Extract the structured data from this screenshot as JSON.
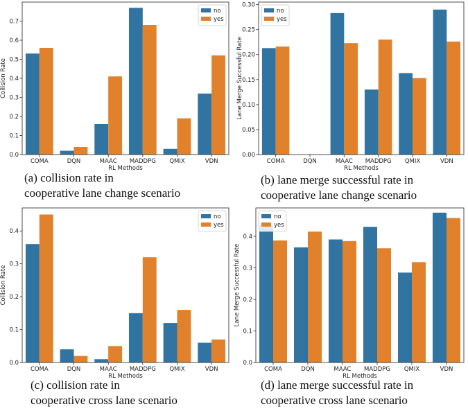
{
  "colors": {
    "no": "#3274a1",
    "yes": "#e1812c"
  },
  "legend": [
    "no",
    "yes"
  ],
  "chart_data": [
    {
      "type": "bar",
      "categories": [
        "COMA",
        "DQN",
        "MAAC",
        "MADDPG",
        "QMIX",
        "VDN"
      ],
      "series": [
        {
          "name": "no",
          "values": [
            0.53,
            0.02,
            0.16,
            0.77,
            0.03,
            0.32
          ]
        },
        {
          "name": "yes",
          "values": [
            0.56,
            0.04,
            0.41,
            0.68,
            0.19,
            0.52
          ]
        }
      ],
      "ylim": [
        0,
        0.8
      ],
      "yticks": [
        "0.0",
        "0.1",
        "0.2",
        "0.3",
        "0.4",
        "0.5",
        "0.6",
        "0.7"
      ],
      "xlabel": "RL Methods",
      "ylabel": "Collision Rate",
      "legend_position": "top-right",
      "caption": [
        "(a) collision rate in",
        "cooperative lane change scenario"
      ]
    },
    {
      "type": "bar",
      "categories": [
        "COMA",
        "DQN",
        "MAAC",
        "MADDPG",
        "QMIX",
        "VDN"
      ],
      "series": [
        {
          "name": "no",
          "values": [
            0.213,
            0,
            0.283,
            0.13,
            0.163,
            0.29
          ]
        },
        {
          "name": "yes",
          "values": [
            0.216,
            0,
            0.223,
            0.23,
            0.153,
            0.226
          ]
        }
      ],
      "ylim": [
        0,
        0.305
      ],
      "yticks": [
        "0.00",
        "0.05",
        "0.10",
        "0.15",
        "0.20",
        "0.25",
        "0.30"
      ],
      "xlabel": "RL Methods",
      "ylabel": "Lane Merge Successful Rate",
      "legend_position": "top-left",
      "caption": [
        "(b) lane merge successful rate in",
        "cooperative lane change scenario"
      ]
    },
    {
      "type": "bar",
      "categories": [
        "COMA",
        "DQN",
        "MAAC",
        "MADDPG",
        "QMIX",
        "VDN"
      ],
      "series": [
        {
          "name": "no",
          "values": [
            0.36,
            0.04,
            0.01,
            0.15,
            0.12,
            0.06
          ]
        },
        {
          "name": "yes",
          "values": [
            0.45,
            0.02,
            0.05,
            0.32,
            0.16,
            0.07
          ]
        }
      ],
      "ylim": [
        0,
        0.47
      ],
      "yticks": [
        "0.0",
        "0.1",
        "0.2",
        "0.3",
        "0.4"
      ],
      "xlabel": "RL Methods",
      "ylabel": "Collision Rate",
      "legend_position": "top-right",
      "caption": [
        "(c) collision rate in",
        "cooperative cross lane scenario"
      ]
    },
    {
      "type": "bar",
      "categories": [
        "COMA",
        "DQN",
        "MAAC",
        "MADDPG",
        "QMIX",
        "VDN"
      ],
      "series": [
        {
          "name": "no",
          "values": [
            0.435,
            0.365,
            0.39,
            0.43,
            0.285,
            0.475
          ]
        },
        {
          "name": "yes",
          "values": [
            0.387,
            0.415,
            0.385,
            0.362,
            0.318,
            0.458
          ]
        }
      ],
      "ylim": [
        0,
        0.49
      ],
      "yticks": [
        "0.0",
        "0.1",
        "0.2",
        "0.3",
        "0.4"
      ],
      "xlabel": "RL Methods",
      "ylabel": "Lane Merge Successful Rate",
      "legend_position": "top-left",
      "caption": [
        "(d) lane merge successful rate in",
        "cooperative cross lane scenario"
      ]
    }
  ]
}
